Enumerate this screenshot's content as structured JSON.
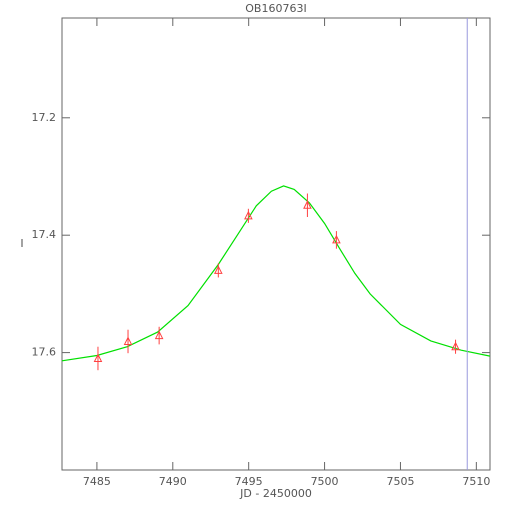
{
  "chart_data": {
    "type": "scatter",
    "title": "OB160763I",
    "x_label": "JD - 2450000",
    "y_label": "I",
    "xlim": [
      7482.7,
      7510.9
    ],
    "ylim": [
      17.8,
      17.03
    ],
    "y_inverted": true,
    "xticks": [
      7485,
      7490,
      7495,
      7500,
      7505,
      7510
    ],
    "yticks": [
      17.2,
      17.4,
      17.6
    ],
    "series": [
      {
        "color": "#ff4040",
        "marker": "triangle",
        "x": [
          7485.07,
          7487.05,
          7489.1,
          7493.0,
          7494.98,
          7498.87,
          7500.78,
          7508.63
        ],
        "values": [
          17.61,
          17.581,
          17.571,
          17.46,
          17.367,
          17.349,
          17.408,
          17.59
        ],
        "errors": [
          0.02,
          0.02,
          0.015,
          0.012,
          0.012,
          0.02,
          0.015,
          0.012
        ]
      }
    ],
    "fit": {
      "color": "#00e000",
      "x": [
        7482.7,
        7485,
        7487,
        7489,
        7491,
        7493,
        7494.5,
        7495.5,
        7496.5,
        7497.3,
        7498,
        7499,
        7500,
        7501,
        7502,
        7503,
        7505,
        7507,
        7509,
        7510.9
      ],
      "values": [
        17.614,
        17.605,
        17.59,
        17.565,
        17.52,
        17.45,
        17.39,
        17.35,
        17.325,
        17.316,
        17.322,
        17.345,
        17.38,
        17.423,
        17.465,
        17.5,
        17.552,
        17.58,
        17.596,
        17.606
      ]
    },
    "vline": {
      "x": 7509.4,
      "color": "#9999dd"
    }
  }
}
